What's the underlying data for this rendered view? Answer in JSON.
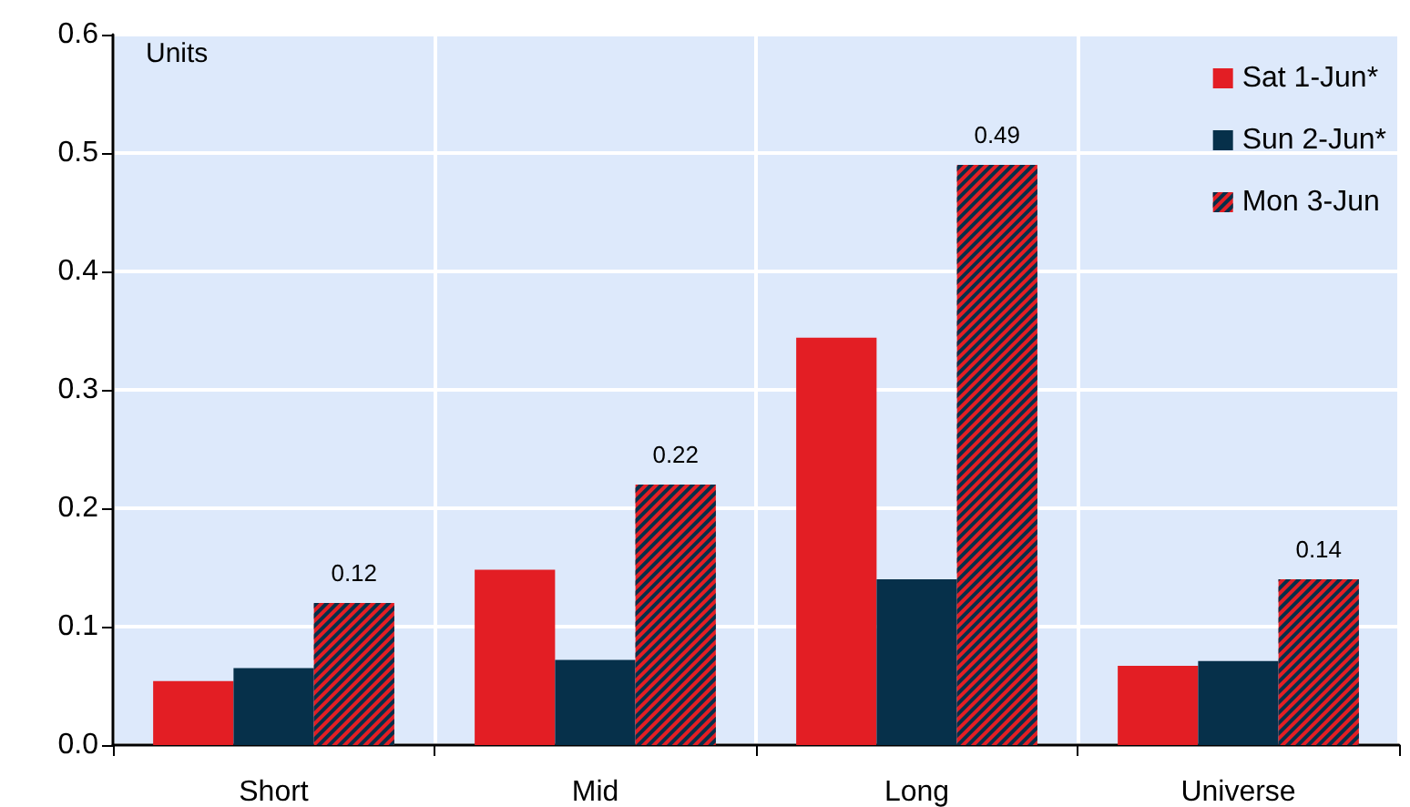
{
  "chart_data": {
    "type": "bar",
    "categories": [
      "Short",
      "Mid",
      "Long",
      "Universe"
    ],
    "series": [
      {
        "name": "Sat 1-Jun*",
        "color": "#e31e24",
        "values": [
          0.054,
          0.148,
          0.344,
          0.067
        ]
      },
      {
        "name": "Sun 2-Jun*",
        "color": "#06304a",
        "values": [
          0.065,
          0.072,
          0.14,
          0.071
        ]
      },
      {
        "name": "Mon 3-Jun",
        "color": "#e31e24",
        "values": [
          0.12,
          0.22,
          0.49,
          0.14
        ],
        "value_labels": [
          "0.12",
          "0.22",
          "0.49",
          "0.14"
        ]
      }
    ],
    "ylim": [
      0,
      0.6
    ],
    "yticks": [
      {
        "value": 0,
        "label": "0.0"
      },
      0.1,
      0.2,
      0.3,
      0.4,
      0.5,
      0.6
    ],
    "annotations": [
      "Units"
    ],
    "grid": true,
    "legend": "top right"
  }
}
